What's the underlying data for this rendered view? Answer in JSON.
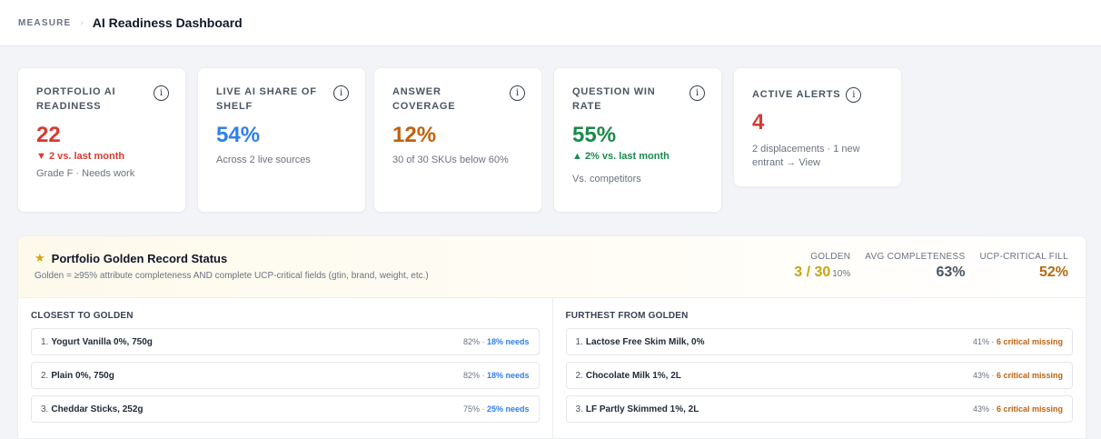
{
  "header": {
    "section": "MEASURE",
    "separator": "›",
    "title": "AI Readiness Dashboard"
  },
  "kpis": [
    {
      "label": "PORTFOLIO AI READINESS",
      "value": "22",
      "value_color": "#d63a31",
      "trend": "▼ 2 vs. last month",
      "trend_color": "#d63a31",
      "sub": "Grade F · Needs work"
    },
    {
      "label": "LIVE AI SHARE OF SHELF",
      "value": "54%",
      "value_color": "#2f80ed",
      "trend": "",
      "trend_color": "",
      "sub": "Across 2 live sources"
    },
    {
      "label": "ANSWER COVERAGE",
      "value": "12%",
      "value_color": "#c0620f",
      "trend": "",
      "trend_color": "",
      "sub": "30 of 30 SKUs below 60%"
    },
    {
      "label": "QUESTION WIN RATE",
      "value": "55%",
      "value_color": "#1b8a4b",
      "trend": "▲ 2% vs. last month",
      "trend_color": "#1b8a4b",
      "sub": "Vs. competitors"
    },
    {
      "label": "ACTIVE ALERTS",
      "value": "4",
      "value_color": "#d63a31",
      "trend": "",
      "trend_color": "",
      "sub": "2 displacements · 1 new entrant → View"
    }
  ],
  "golden_record": {
    "title": "Portfolio Golden Record Status",
    "description": "Golden = ≥95% attribute completeness AND complete UCP-critical fields (gtin, brand, weight, etc.)",
    "metrics": {
      "golden_label": "GOLDEN",
      "golden_value": "3 / 30",
      "golden_pct": "10%",
      "golden_color": "#c9a312",
      "completeness_label": "AVG COMPLETENESS",
      "completeness_value": "63%",
      "completeness_color": "#4b5563",
      "ucp_label": "UCP-CRITICAL FILL",
      "ucp_value": "52%",
      "ucp_color": "#b86a12"
    },
    "closest": {
      "title": "CLOSEST TO GOLDEN",
      "accent": "#2f80ed",
      "items": [
        {
          "num": "1.",
          "name": "Yogurt Vanilla 0%, 750g",
          "pct": "82% · ",
          "detail": "18% needs"
        },
        {
          "num": "2.",
          "name": "Plain 0%, 750g",
          "pct": "82% · ",
          "detail": "18% needs"
        },
        {
          "num": "3.",
          "name": "Cheddar Sticks, 252g",
          "pct": "75% · ",
          "detail": "25% needs"
        }
      ]
    },
    "furthest": {
      "title": "FURTHEST FROM GOLDEN",
      "accent": "#c0620f",
      "items": [
        {
          "num": "1.",
          "name": "Lactose Free Skim Milk, 0%",
          "pct": "41% · ",
          "detail": "6 critical missing"
        },
        {
          "num": "2.",
          "name": "Chocolate Milk 1%, 2L",
          "pct": "43% · ",
          "detail": "6 critical missing"
        },
        {
          "num": "3.",
          "name": "LF Partly Skimmed 1%, 2L",
          "pct": "43% · ",
          "detail": "6 critical missing"
        }
      ]
    }
  },
  "icons": {
    "info": "info-circle-icon",
    "star": "star-icon"
  }
}
